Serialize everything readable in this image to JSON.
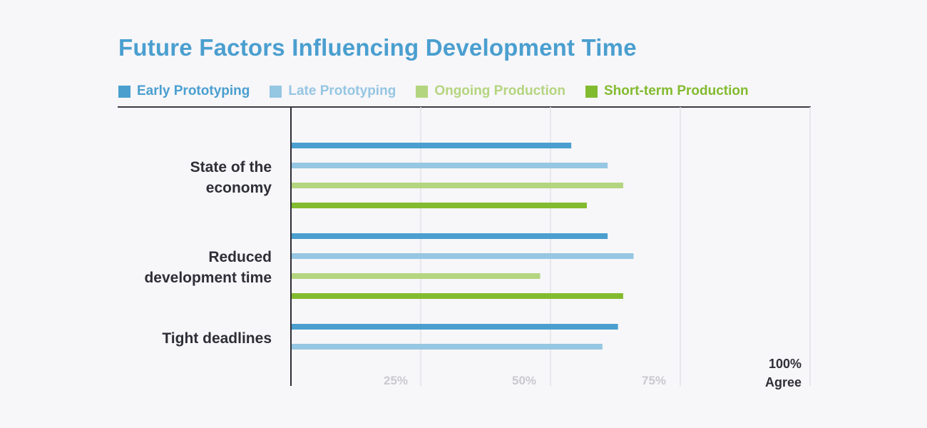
{
  "title": "Future Factors Influencing Development Time",
  "legend": [
    {
      "label": "Early Prototyping",
      "color": "#4a9fcf"
    },
    {
      "label": "Late Prototyping",
      "color": "#95c6e2"
    },
    {
      "label": "Ongoing Production",
      "color": "#b4d57f"
    },
    {
      "label": "Short-term Production",
      "color": "#82bb2f"
    }
  ],
  "category_labels": {
    "economy_line1": "State of the",
    "economy_line2": "economy",
    "reduced_line1": "Reduced",
    "reduced_line2": "development time",
    "tight": "Tight deadlines"
  },
  "axis": {
    "tick_25": "25%",
    "tick_50": "50%",
    "tick_75": "75%",
    "end_value": "100%",
    "end_caption": "Agree"
  },
  "chart_data": {
    "type": "bar",
    "orientation": "horizontal",
    "title": "Future Factors Influencing Development Time",
    "categories": [
      "State of the economy",
      "Reduced development time",
      "Tight deadlines"
    ],
    "series": [
      {
        "name": "Early Prototyping",
        "values": [
          54,
          61,
          63
        ]
      },
      {
        "name": "Late Prototyping",
        "values": [
          61,
          66,
          60
        ]
      },
      {
        "name": "Ongoing Production",
        "values": [
          64,
          48,
          null
        ]
      },
      {
        "name": "Short-term Production",
        "values": [
          57,
          64,
          null
        ]
      }
    ],
    "xlim": [
      0,
      100
    ],
    "xticks": [
      "25%",
      "50%",
      "75%",
      "100%"
    ],
    "xlabel": "Agree",
    "grid": true,
    "legend_position": "top-left"
  }
}
